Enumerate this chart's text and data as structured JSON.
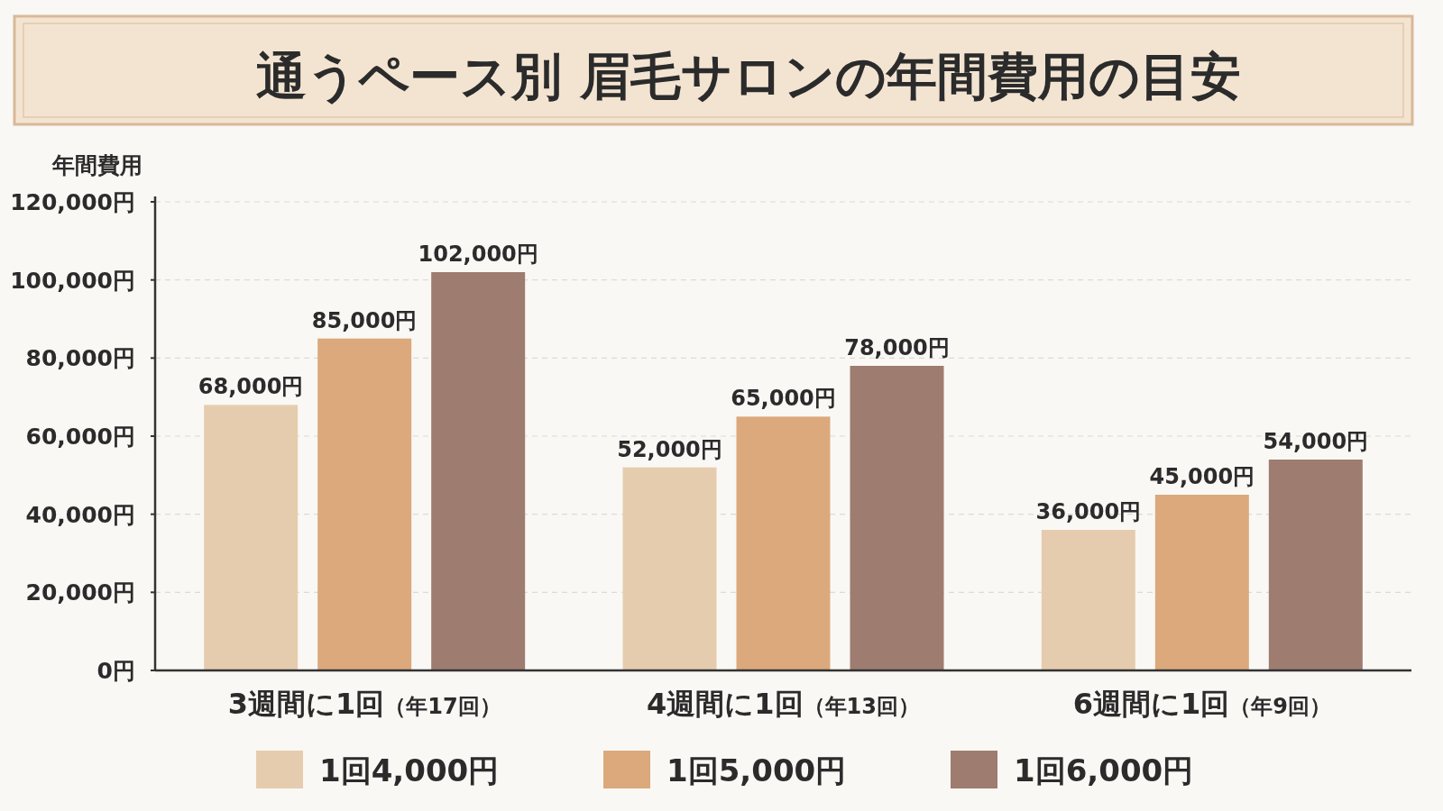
{
  "chart_data": {
    "type": "bar",
    "title": "通うペース別 眉毛サロンの年間費用の目安",
    "ylabel": "年間費用",
    "categories": [
      "3週間に1回（年17回）",
      "4週間に1回（年13回）",
      "6週間に1回（年9回）"
    ],
    "series": [
      {
        "name": "1回4,000円",
        "color": "#e6ccae",
        "values": [
          68000,
          52000,
          36000
        ],
        "value_labels": [
          "68,000円",
          "52,000円",
          "36,000円"
        ]
      },
      {
        "name": "1回5,000円",
        "color": "#dba97c",
        "values": [
          85000,
          65000,
          45000
        ],
        "value_labels": [
          "85,000円",
          "65,000円",
          "45,000円"
        ]
      },
      {
        "name": "1回6,000円",
        "color": "#9e7c70",
        "values": [
          102000,
          78000,
          54000
        ],
        "value_labels": [
          "102,000円",
          "78,000円",
          "54,000円"
        ]
      }
    ],
    "ylim": [
      0,
      120000
    ],
    "yticks": [
      {
        "value": 0,
        "label": "0円"
      },
      {
        "value": 20000,
        "label": "20,000円"
      },
      {
        "value": 40000,
        "label": "40,000円"
      },
      {
        "value": 60000,
        "label": "60,000円"
      },
      {
        "value": 80000,
        "label": "80,000円"
      },
      {
        "value": 100000,
        "label": "100,000円"
      },
      {
        "value": 120000,
        "label": "120,000円"
      }
    ],
    "grid": "y",
    "legend": "bottom"
  }
}
